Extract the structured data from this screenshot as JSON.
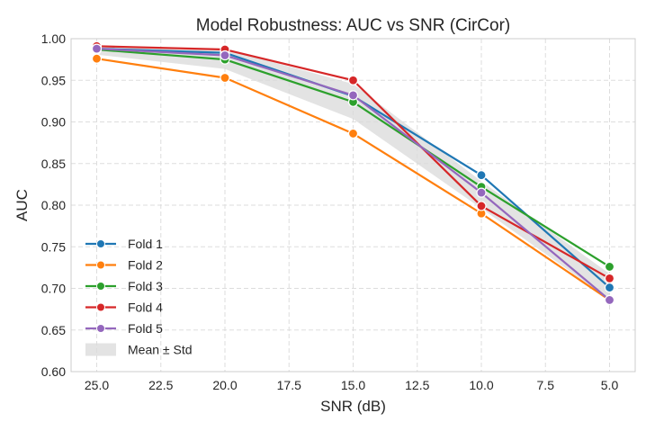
{
  "chart_data": {
    "type": "line",
    "title": "Model Robustness: AUC vs SNR (CirCor)",
    "xlabel": "SNR (dB)",
    "ylabel": "AUC",
    "x": [
      25.0,
      20.0,
      15.0,
      10.0,
      5.0
    ],
    "xlim": [
      26.0,
      4.0
    ],
    "ylim": [
      0.6,
      1.0
    ],
    "xticks": [
      "25.0",
      "22.5",
      "20.0",
      "17.5",
      "15.0",
      "12.5",
      "10.0",
      "7.5",
      "5.0"
    ],
    "xtick_values": [
      25.0,
      22.5,
      20.0,
      17.5,
      15.0,
      12.5,
      10.0,
      7.5,
      5.0
    ],
    "yticks": [
      "0.60",
      "0.65",
      "0.70",
      "0.75",
      "0.80",
      "0.85",
      "0.90",
      "0.95",
      "1.00"
    ],
    "ytick_values": [
      0.6,
      0.65,
      0.7,
      0.75,
      0.8,
      0.85,
      0.9,
      0.95,
      1.0
    ],
    "grid": true,
    "legend_position": "bottom-left",
    "series": [
      {
        "name": "Fold 1",
        "color": "#1f77b4",
        "values": [
          0.988,
          0.983,
          0.931,
          0.836,
          0.701
        ]
      },
      {
        "name": "Fold 2",
        "color": "#ff7f0e",
        "values": [
          0.976,
          0.953,
          0.886,
          0.79,
          0.686
        ]
      },
      {
        "name": "Fold 3",
        "color": "#2ca02c",
        "values": [
          0.987,
          0.975,
          0.924,
          0.822,
          0.726
        ]
      },
      {
        "name": "Fold 4",
        "color": "#d62728",
        "values": [
          0.991,
          0.987,
          0.95,
          0.799,
          0.712
        ]
      },
      {
        "name": "Fold 5",
        "color": "#9467bd",
        "values": [
          0.988,
          0.98,
          0.932,
          0.815,
          0.686
        ]
      }
    ],
    "band": {
      "name": "Mean ± Std",
      "color": "#d9d9d9"
    }
  }
}
